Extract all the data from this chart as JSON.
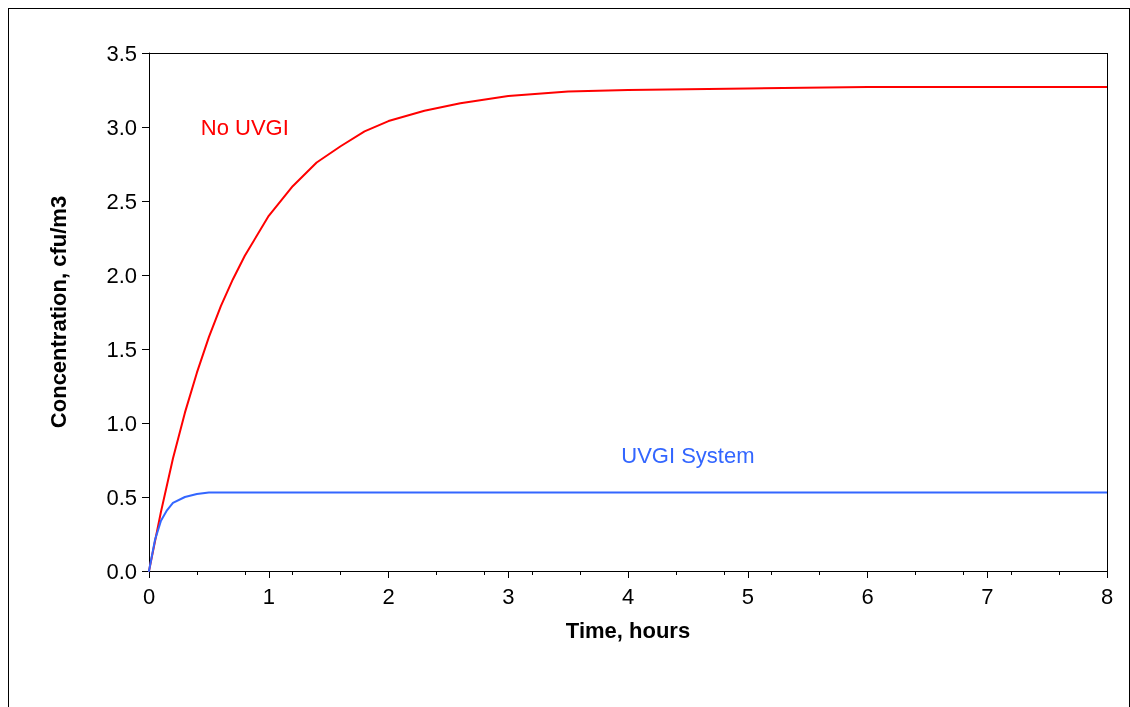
{
  "chart_data": {
    "type": "line",
    "xlabel": "Time, hours",
    "ylabel": "Concentration, cfu/m3",
    "xlim": [
      0,
      8
    ],
    "xticks": [
      0,
      1,
      2,
      3,
      4,
      5,
      6,
      7,
      8
    ],
    "ylim": [
      0,
      3.5
    ],
    "yticks": [
      {
        "value": 0,
        "label": "0.0"
      },
      0.5,
      {
        "value": 1,
        "label": "1.0"
      },
      1.5,
      {
        "value": 2,
        "label": "2.0"
      },
      2.5,
      {
        "value": 3,
        "label": "3.0"
      },
      3.5
    ],
    "grid": false,
    "legend": false,
    "marker": "none",
    "line_style": "solid",
    "series": [
      {
        "name": "No UVGI",
        "color": "#ff0000",
        "x": [
          0,
          0.1,
          0.2,
          0.3,
          0.4,
          0.5,
          0.6,
          0.7,
          0.8,
          1,
          1.2,
          1.4,
          1.6,
          1.8,
          2,
          2.3,
          2.6,
          3,
          3.5,
          4,
          5,
          6,
          7,
          8
        ],
        "values": [
          0,
          0.4,
          0.76,
          1.07,
          1.34,
          1.58,
          1.79,
          1.97,
          2.13,
          2.4,
          2.6,
          2.76,
          2.87,
          2.97,
          3.04,
          3.11,
          3.16,
          3.21,
          3.24,
          3.25,
          3.26,
          3.27,
          3.27,
          3.27
        ]
      },
      {
        "name": "UVGI System",
        "color": "#3366ff",
        "x": [
          0,
          0.05,
          0.1,
          0.15,
          0.2,
          0.3,
          0.4,
          0.5,
          1,
          2,
          4,
          6,
          8
        ],
        "values": [
          0,
          0.21,
          0.34,
          0.41,
          0.46,
          0.5,
          0.52,
          0.53,
          0.53,
          0.53,
          0.53,
          0.53,
          0.53
        ]
      }
    ]
  }
}
